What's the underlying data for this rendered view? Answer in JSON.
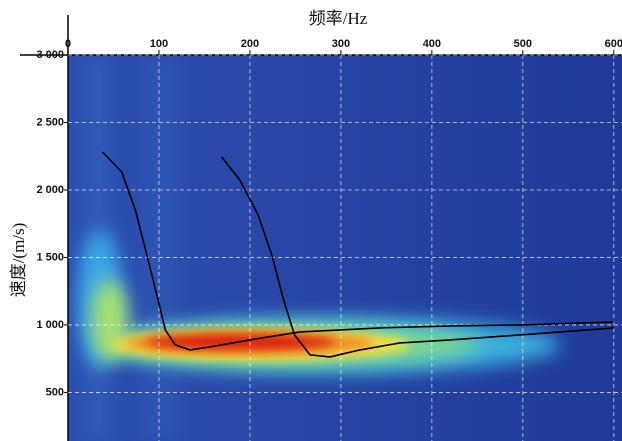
{
  "chart_data": {
    "type": "line",
    "xlabel": "频率/Hz",
    "ylabel": "速度/(m/s)",
    "xlim": [
      0,
      609
    ],
    "xticks": [
      0,
      100,
      200,
      300,
      400,
      500,
      600
    ],
    "ylim": [
      140,
      3000
    ],
    "yticks": [
      {
        "value": 500,
        "label": "500"
      },
      {
        "value": 1000,
        "label": "1 000"
      },
      {
        "value": 1500,
        "label": "1 500"
      },
      {
        "value": 2000,
        "label": "2 000"
      },
      {
        "value": 2500,
        "label": "2 500"
      },
      {
        "value": 3000,
        "label": "3 000"
      }
    ],
    "grid": true,
    "series": [
      {
        "color": "#000000",
        "x": [
          38,
          59,
          74,
          88,
          99,
          107,
          118,
          134,
          156,
          200,
          255,
          343,
          420,
          497,
          600
        ],
        "values": [
          2281,
          2133,
          1852,
          1481,
          1185,
          963,
          852,
          815,
          837,
          889,
          948,
          978,
          993,
          1000,
          1022
        ]
      },
      {
        "color": "#000000",
        "x": [
          169,
          189,
          209,
          224,
          237,
          249,
          266,
          288,
          321,
          365,
          420,
          497,
          600
        ],
        "values": [
          2244,
          2074,
          1815,
          1519,
          1185,
          926,
          778,
          763,
          815,
          867,
          889,
          926,
          978
        ]
      }
    ]
  }
}
